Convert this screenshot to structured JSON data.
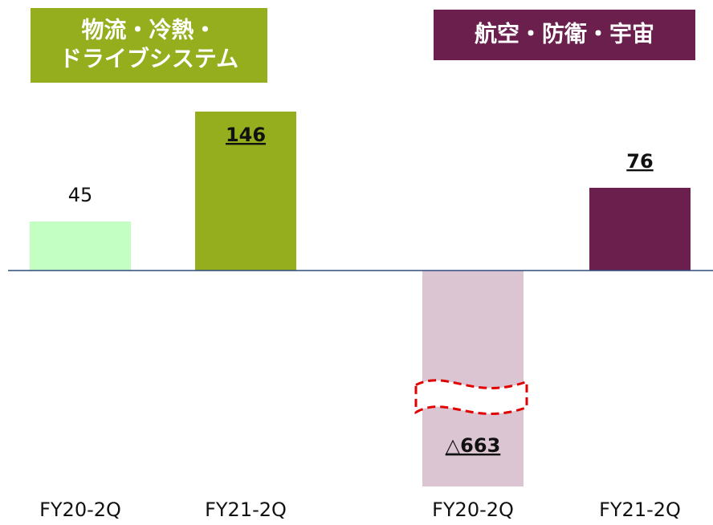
{
  "chart_data": {
    "type": "bar",
    "groups": [
      {
        "title": [
          "物流・冷熱・",
          "ドライブシステム"
        ],
        "title_color": "#94ae1e",
        "categories": [
          "FY20-2Q",
          "FY21-2Q"
        ],
        "values": [
          45,
          146
        ],
        "value_labels": [
          "45",
          "146"
        ],
        "colors": [
          "#c3ffc3",
          "#94ae1e"
        ]
      },
      {
        "title": [
          "航空・防衛・宇宙"
        ],
        "title_color": "#6b1f4c",
        "categories": [
          "FY20-2Q",
          "FY21-2Q"
        ],
        "values": [
          -663,
          76
        ],
        "value_labels": [
          "△663",
          "76"
        ],
        "colors": [
          "#dbc5d2",
          "#6b1f4c"
        ]
      }
    ]
  }
}
